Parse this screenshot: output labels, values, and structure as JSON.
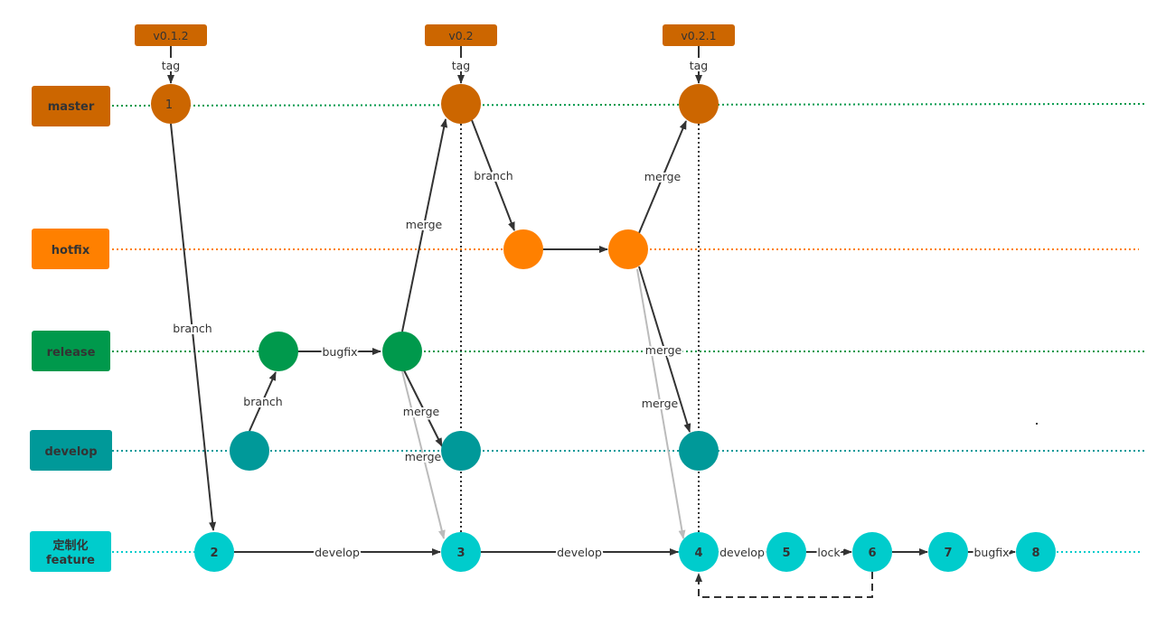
{
  "colors": {
    "master": "#cc6600",
    "hotfix": "#ff8000",
    "release": "#00994c",
    "develop": "#009999",
    "feature": "#00cccc",
    "edge": "#333333",
    "edge_gray": "#bbbbbb"
  },
  "lanes": {
    "master": "master",
    "hotfix": "hotfix",
    "release": "release",
    "develop": "develop",
    "feature_line1": "定制化",
    "feature_line2": "feature"
  },
  "tags": [
    "v0.1.2",
    "v0.2",
    "v0.2.1"
  ],
  "tag_edge_label": "tag",
  "nodes": {
    "master_1": "1",
    "feature_2": "2",
    "feature_3": "3",
    "feature_4": "4",
    "feature_5": "5",
    "feature_6": "6",
    "feature_7": "7",
    "feature_8": "8"
  },
  "edge_labels": {
    "master1_to_feature2": "branch",
    "develop_to_release": "branch",
    "release_bugfix": "bugfix",
    "release_to_master": "merge",
    "master_to_hotfix": "branch",
    "hotfix_to_master": "merge",
    "hotfix_to_develop": "merge",
    "hotfix_to_feature": "merge",
    "release_to_develop": "merge",
    "release_to_feature": "merge",
    "f2_to_f3": "develop",
    "f3_to_f4": "develop",
    "f4_to_f5": "develop",
    "f5_to_f6": "lock",
    "f7_to_f8": "bugfix"
  }
}
